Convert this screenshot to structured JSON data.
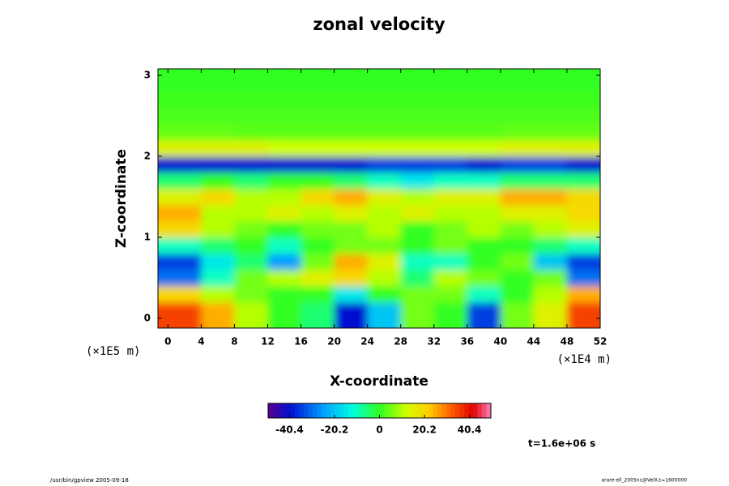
{
  "chart_data": {
    "type": "heatmap",
    "title": "zonal velocity",
    "xlabel": "X-coordinate",
    "ylabel": "Z-coordinate",
    "x_unit": "(×1E4 m)",
    "y_unit": "(×1E5 m)",
    "time_label": "t=1.6e+06 s",
    "footer_left": "/usr/bin/gpview 2005-09-18",
    "footer_right": "arare-ell_2005nc@VelX,t=1600000",
    "x": [
      2,
      6,
      10,
      14,
      18,
      22,
      26,
      30,
      34,
      38,
      42,
      46,
      50
    ],
    "y": [
      0.1,
      0.3,
      0.5,
      0.7,
      0.9,
      1.1,
      1.3,
      1.5,
      1.7,
      1.9,
      2.1,
      2.3,
      2.5,
      2.7,
      2.9,
      3.1
    ],
    "z": [
      [
        35,
        25,
        10,
        0,
        -5,
        -40,
        -20,
        5,
        0,
        -35,
        5,
        15,
        35
      ],
      [
        20,
        10,
        5,
        0,
        0,
        -15,
        0,
        5,
        5,
        -10,
        0,
        10,
        25
      ],
      [
        -30,
        -10,
        5,
        10,
        15,
        20,
        10,
        -5,
        10,
        5,
        0,
        5,
        -30
      ],
      [
        -35,
        -15,
        -5,
        -25,
        5,
        25,
        15,
        -10,
        -10,
        0,
        5,
        -20,
        -35
      ],
      [
        -10,
        -5,
        0,
        -10,
        0,
        5,
        5,
        0,
        5,
        0,
        0,
        -5,
        -10
      ],
      [
        20,
        10,
        5,
        0,
        5,
        5,
        10,
        0,
        5,
        10,
        5,
        10,
        15
      ],
      [
        25,
        10,
        10,
        15,
        10,
        15,
        10,
        15,
        10,
        10,
        15,
        15,
        20
      ],
      [
        15,
        20,
        10,
        10,
        20,
        25,
        15,
        10,
        15,
        15,
        25,
        25,
        20
      ],
      [
        -5,
        0,
        -5,
        0,
        0,
        -5,
        -10,
        -15,
        -10,
        -10,
        -5,
        -5,
        -5
      ],
      [
        -40,
        -40,
        -40,
        -40,
        -40,
        -40,
        -35,
        -35,
        -35,
        -40,
        -35,
        -35,
        -40
      ],
      [
        15,
        15,
        15,
        12,
        12,
        12,
        12,
        12,
        12,
        12,
        15,
        15,
        15
      ],
      [
        4,
        4,
        3,
        3,
        3,
        3,
        3,
        3,
        3,
        3,
        4,
        4,
        4
      ],
      [
        2,
        2,
        2,
        2,
        2,
        2,
        2,
        2,
        2,
        2,
        2,
        2,
        2
      ],
      [
        1,
        1,
        1,
        1,
        1,
        1,
        1,
        1,
        1,
        1,
        1,
        1,
        1
      ],
      [
        0,
        0,
        0,
        0,
        0,
        0,
        0,
        0,
        0,
        0,
        0,
        0,
        0
      ],
      [
        0,
        0,
        0,
        0,
        0,
        0,
        0,
        0,
        0,
        0,
        0,
        0,
        0
      ]
    ],
    "xlim": [
      -1.2,
      52
    ],
    "ylim": [
      -0.12,
      3.08
    ],
    "xticks": [
      0,
      4,
      8,
      12,
      16,
      20,
      24,
      28,
      32,
      36,
      40,
      44,
      48,
      52
    ],
    "yticks": [
      0,
      1,
      2,
      3
    ],
    "clim": [
      -50,
      50
    ],
    "cticks": [
      -40.4,
      -20.2,
      0,
      20.2,
      40.4
    ]
  }
}
